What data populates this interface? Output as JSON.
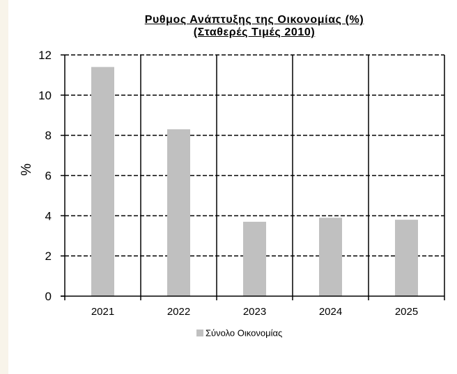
{
  "chart_data": {
    "type": "bar",
    "title": "Ρυθμος Ανάπτυξης της Οικονομίας (%)",
    "subtitle": "(Σταθερές Τιμές 2010)",
    "xlabel": "",
    "ylabel": "%",
    "categories": [
      "2021",
      "2022",
      "2023",
      "2024",
      "2025"
    ],
    "series": [
      {
        "name": "Σύνολο Οικονομίας",
        "values": [
          11.4,
          8.3,
          3.7,
          3.9,
          3.8
        ]
      }
    ],
    "ylim": [
      0,
      12
    ],
    "yticks": [
      "0",
      "2",
      "4",
      "6",
      "8",
      "10",
      "12"
    ],
    "grid": "dashed horizontal, solid vertical category separators",
    "legend": "bottom-center",
    "colors": {
      "bar": "#c0c0c0",
      "axis": "#000000",
      "background": "#ffffff",
      "strip": "#f8f4ea"
    }
  }
}
